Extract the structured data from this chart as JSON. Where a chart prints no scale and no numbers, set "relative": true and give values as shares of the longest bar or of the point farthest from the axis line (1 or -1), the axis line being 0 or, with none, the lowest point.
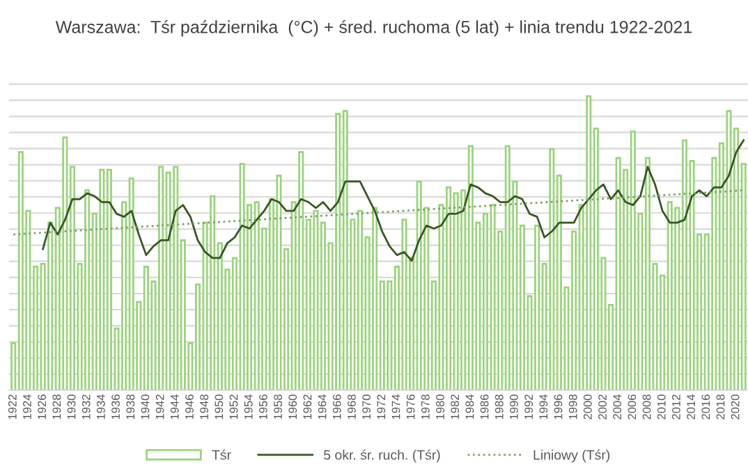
{
  "chart_data": {
    "type": "bar",
    "title": "Warszawa:  Tśr października  (°C) + śred. ruchoma (5 lat) + linia trendu 1922-2021",
    "relative": true,
    "grid": "y",
    "legend": "bottom",
    "categories": [
      "1922",
      null,
      "1924",
      null,
      "1926",
      null,
      "1928",
      null,
      "1930",
      null,
      "1932",
      null,
      "1934",
      null,
      "1936",
      null,
      "1938",
      null,
      "1940",
      null,
      "1942",
      null,
      "1944",
      null,
      "1946",
      null,
      "1948",
      null,
      "1950",
      null,
      "1952",
      null,
      "1954",
      null,
      "1956",
      null,
      "1958",
      null,
      "1960",
      null,
      "1962",
      null,
      "1964",
      null,
      "1966",
      null,
      "1968",
      null,
      "1970",
      null,
      "1972",
      null,
      "1974",
      null,
      "1976",
      null,
      "1978",
      null,
      "1980",
      null,
      "1982",
      null,
      "1984",
      null,
      "1986",
      null,
      "1988",
      null,
      "1990",
      null,
      "1992",
      null,
      "1994",
      null,
      "1996",
      null,
      "1998",
      null,
      "2000",
      null,
      "2002",
      null,
      "2004",
      null,
      "2006",
      null,
      "2008",
      null,
      "2010",
      null,
      "2012",
      null,
      "2014",
      null,
      "2016",
      null,
      "2018",
      null,
      "2020",
      null
    ],
    "series": [
      {
        "name": "Tśr",
        "color": "#9bd37d",
        "values": [
          0.16,
          0.81,
          0.61,
          0.42,
          0.43,
          0.57,
          0.62,
          0.86,
          0.76,
          0.43,
          0.68,
          0.6,
          0.75,
          0.75,
          0.21,
          0.64,
          0.72,
          0.3,
          0.42,
          0.37,
          0.76,
          0.74,
          0.76,
          0.51,
          0.16,
          0.36,
          0.57,
          0.66,
          0.5,
          0.41,
          0.45,
          0.77,
          0.63,
          0.64,
          0.55,
          0.65,
          0.73,
          0.48,
          0.64,
          0.81,
          0.58,
          0.61,
          0.57,
          0.5,
          0.94,
          0.95,
          0.58,
          0.61,
          0.52,
          0.62,
          0.37,
          0.37,
          0.42,
          0.58,
          0.45,
          0.71,
          0.62,
          0.37,
          0.63,
          0.69,
          0.67,
          0.68,
          0.83,
          0.57,
          0.6,
          0.63,
          0.54,
          0.83,
          0.71,
          0.56,
          0.32,
          0.56,
          0.43,
          0.82,
          0.73,
          0.35,
          0.54,
          0.63,
          1.0,
          0.89,
          0.45,
          0.29,
          0.79,
          0.75,
          0.88,
          0.6,
          0.79,
          0.43,
          0.39,
          0.64,
          0.62,
          0.85,
          0.78,
          0.53,
          0.53,
          0.79,
          0.84,
          0.95,
          0.89,
          0.77
        ]
      },
      {
        "name": "5 okr. śr. ruch. (Tśr)",
        "type": "line",
        "line_style": "solid",
        "color": "#375623",
        "values": [
          null,
          null,
          null,
          null,
          0.48,
          0.57,
          0.53,
          0.58,
          0.65,
          0.65,
          0.67,
          0.66,
          0.64,
          0.64,
          0.6,
          0.59,
          0.61,
          0.53,
          0.46,
          0.49,
          0.51,
          0.51,
          0.61,
          0.63,
          0.59,
          0.51,
          0.47,
          0.45,
          0.45,
          0.5,
          0.52,
          0.56,
          0.55,
          0.58,
          0.61,
          0.65,
          0.64,
          0.61,
          0.61,
          0.65,
          0.64,
          0.62,
          0.64,
          0.61,
          0.64,
          0.71,
          0.71,
          0.71,
          0.66,
          0.61,
          0.54,
          0.49,
          0.46,
          0.47,
          0.44,
          0.51,
          0.56,
          0.55,
          0.56,
          0.6,
          0.6,
          0.61,
          0.7,
          0.69,
          0.67,
          0.66,
          0.64,
          0.64,
          0.66,
          0.65,
          0.6,
          0.59,
          0.52,
          0.54,
          0.57,
          0.57,
          0.57,
          0.62,
          0.65,
          0.68,
          0.7,
          0.65,
          0.68,
          0.64,
          0.63,
          0.66,
          0.76,
          0.7,
          0.61,
          0.57,
          0.57,
          0.58,
          0.66,
          0.68,
          0.66,
          0.69,
          0.69,
          0.73,
          0.81,
          0.85
        ]
      },
      {
        "name": "Liniowy (Tśr)",
        "type": "line",
        "line_style": "dotted",
        "color": "#7f9f6a",
        "values": [
          0.53,
          null,
          null,
          null,
          null,
          null,
          null,
          null,
          null,
          null,
          null,
          null,
          null,
          null,
          null,
          null,
          null,
          null,
          null,
          null,
          null,
          null,
          null,
          null,
          null,
          null,
          null,
          null,
          null,
          null,
          null,
          null,
          null,
          null,
          null,
          null,
          null,
          null,
          null,
          null,
          null,
          null,
          null,
          null,
          null,
          null,
          null,
          null,
          null,
          null,
          null,
          null,
          null,
          null,
          null,
          null,
          null,
          null,
          null,
          null,
          null,
          null,
          null,
          null,
          null,
          null,
          null,
          null,
          null,
          null,
          null,
          null,
          null,
          null,
          null,
          null,
          null,
          null,
          null,
          null,
          null,
          null,
          null,
          null,
          null,
          null,
          null,
          null,
          null,
          null,
          null,
          null,
          null,
          null,
          null,
          null,
          null,
          null,
          null,
          0.68
        ]
      }
    ]
  }
}
